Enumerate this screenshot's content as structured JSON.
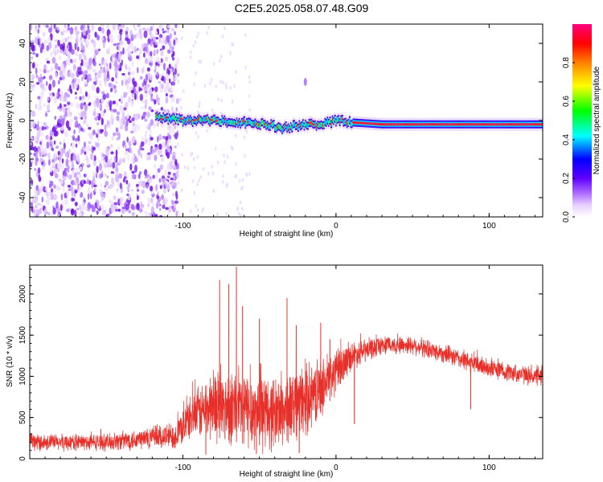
{
  "title": "C2E5.2025.058.07.48.G09",
  "chart_data": [
    {
      "type": "heatmap",
      "xlabel": "Height of straight line (km)",
      "ylabel": "Frequency (Hz)",
      "xlim": [
        -200,
        135
      ],
      "ylim": [
        -50,
        50
      ],
      "x_ticks": [
        -100,
        0,
        100
      ],
      "y_ticks": [
        -40,
        -20,
        0,
        20,
        40
      ],
      "colorbar": {
        "label": "Normalized spectral amplitude",
        "range": [
          0,
          1
        ],
        "ticks": [
          0.0,
          0.2,
          0.4,
          0.6,
          0.8
        ],
        "colors": [
          "#ffffff",
          "#d9b3ff",
          "#8000ff",
          "#0000ff",
          "#00ffff",
          "#00ff00",
          "#ffff00",
          "#ff8000",
          "#ff0000",
          "#ff0080"
        ]
      },
      "features": {
        "noise_region_x": [
          -200,
          -103
        ],
        "signal_start_x": -118,
        "signal_track": [
          {
            "x": -118,
            "freq": 2
          },
          {
            "x": -100,
            "freq": 0
          },
          {
            "x": -80,
            "freq": 0
          },
          {
            "x": -60,
            "freq": -1
          },
          {
            "x": -45,
            "freq": -2
          },
          {
            "x": -35,
            "freq": -4
          },
          {
            "x": -20,
            "freq": -2
          },
          {
            "x": -10,
            "freq": -2
          },
          {
            "x": 0,
            "freq": 0
          },
          {
            "x": 10,
            "freq": -1
          },
          {
            "x": 30,
            "freq": -2
          },
          {
            "x": 80,
            "freq": -2
          },
          {
            "x": 135,
            "freq": -2
          }
        ]
      }
    },
    {
      "type": "line",
      "color": "#e8302a",
      "xlabel": "Height of straight line (km)",
      "ylabel": "SNR (10 * v/v)",
      "xlim": [
        -200,
        135
      ],
      "ylim": [
        0,
        2350
      ],
      "x_ticks": [
        -100,
        0,
        100
      ],
      "y_ticks": [
        0,
        500,
        1000,
        1500,
        2000
      ],
      "envelope": [
        {
          "x": -200,
          "mean": 200,
          "spread": 90
        },
        {
          "x": -150,
          "mean": 200,
          "spread": 90
        },
        {
          "x": -105,
          "mean": 280,
          "spread": 150
        },
        {
          "x": -95,
          "mean": 500,
          "spread": 230
        },
        {
          "x": -80,
          "mean": 650,
          "spread": 380
        },
        {
          "x": -60,
          "mean": 600,
          "spread": 420
        },
        {
          "x": -40,
          "mean": 550,
          "spread": 400
        },
        {
          "x": -20,
          "mean": 700,
          "spread": 380
        },
        {
          "x": -8,
          "mean": 900,
          "spread": 300
        },
        {
          "x": 0,
          "mean": 1050,
          "spread": 250
        },
        {
          "x": 10,
          "mean": 1250,
          "spread": 150
        },
        {
          "x": 30,
          "mean": 1380,
          "spread": 100
        },
        {
          "x": 50,
          "mean": 1380,
          "spread": 100
        },
        {
          "x": 70,
          "mean": 1280,
          "spread": 100
        },
        {
          "x": 90,
          "mean": 1150,
          "spread": 110
        },
        {
          "x": 110,
          "mean": 1060,
          "spread": 100
        },
        {
          "x": 135,
          "mean": 980,
          "spread": 100
        }
      ],
      "spikes": [
        {
          "x": -76,
          "y": 2170
        },
        {
          "x": -70,
          "y": 2120
        },
        {
          "x": -65,
          "y": 2330
        },
        {
          "x": -61,
          "y": 1850
        },
        {
          "x": -50,
          "y": 1700
        },
        {
          "x": -32,
          "y": 1950
        },
        {
          "x": -26,
          "y": 1620
        },
        {
          "x": -10,
          "y": 1650
        },
        {
          "x": -4,
          "y": 1450
        }
      ],
      "dips": [
        {
          "x": -85,
          "y": 50
        },
        {
          "x": -52,
          "y": 60
        },
        {
          "x": -24,
          "y": 70
        },
        {
          "x": 12,
          "y": 420
        },
        {
          "x": 88,
          "y": 600
        }
      ]
    }
  ]
}
